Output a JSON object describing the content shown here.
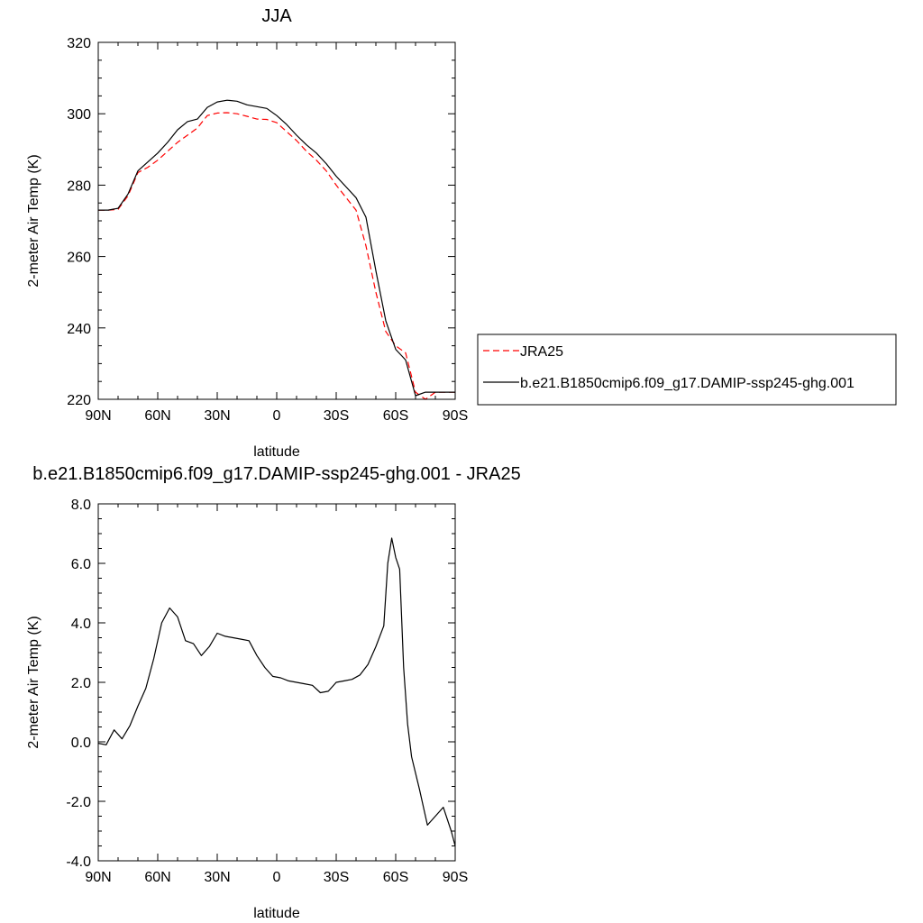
{
  "chart_data": [
    {
      "type": "line",
      "title": "JJA",
      "xlabel": "latitude",
      "ylabel": "2-meter Air Temp (K)",
      "xlim": [
        90,
        -90
      ],
      "ylim": [
        220,
        320
      ],
      "xticks": [
        {
          "value": 90,
          "label": "90N"
        },
        {
          "value": 60,
          "label": "60N"
        },
        {
          "value": 30,
          "label": "30N"
        },
        {
          "value": 0,
          "label": "0"
        },
        {
          "value": -30,
          "label": "30S"
        },
        {
          "value": -60,
          "label": "60S"
        },
        {
          "value": -90,
          "label": "90S"
        }
      ],
      "yticks": [
        {
          "value": 220,
          "label": "220"
        },
        {
          "value": 240,
          "label": "240"
        },
        {
          "value": 260,
          "label": "260"
        },
        {
          "value": 280,
          "label": "280"
        },
        {
          "value": 300,
          "label": "300"
        },
        {
          "value": 320,
          "label": "320"
        }
      ],
      "grid": false,
      "legend_position": "right",
      "series": [
        {
          "name": "JRA25",
          "color": "#ff0000",
          "dash": "dashed",
          "x": [
            90,
            85,
            80,
            75,
            70,
            65,
            60,
            55,
            50,
            45,
            40,
            35,
            30,
            25,
            20,
            15,
            10,
            5,
            0,
            -5,
            -10,
            -15,
            -20,
            -25,
            -30,
            -35,
            -40,
            -45,
            -50,
            -55,
            -60,
            -65,
            -70,
            -75,
            -80,
            -85,
            -90
          ],
          "values": [
            273,
            273,
            273.2,
            277,
            283.5,
            285,
            287,
            289.5,
            292,
            294,
            296,
            299.5,
            300.2,
            300.3,
            300,
            299.3,
            298.5,
            298.4,
            297.5,
            295,
            292.5,
            289.5,
            287,
            284,
            280,
            276.5,
            273,
            263,
            250,
            239,
            235,
            233,
            222,
            218,
            222,
            222,
            222
          ]
        },
        {
          "name": "b.e21.B1850cmip6.f09_g17.DAMIP-ssp245-ghg.001",
          "color": "#000000",
          "dash": "solid",
          "x": [
            90,
            85,
            80,
            75,
            70,
            65,
            60,
            55,
            50,
            45,
            40,
            35,
            30,
            25,
            20,
            15,
            10,
            5,
            0,
            -5,
            -10,
            -15,
            -20,
            -25,
            -30,
            -35,
            -40,
            -45,
            -50,
            -55,
            -60,
            -65,
            -70,
            -75,
            -80,
            -85,
            -90
          ],
          "values": [
            273,
            273,
            273.5,
            277.5,
            284,
            286.5,
            289,
            292,
            295.5,
            297.8,
            298.5,
            301.8,
            303.3,
            303.8,
            303.5,
            302.5,
            302,
            301.5,
            299.5,
            297,
            294,
            291.3,
            289,
            286,
            282.5,
            279.5,
            276.5,
            271,
            256,
            242,
            234,
            231,
            221,
            222,
            222,
            222,
            222
          ]
        }
      ]
    },
    {
      "type": "line",
      "title": "b.e21.B1850cmip6.f09_g17.DAMIP-ssp245-ghg.001 - JRA25",
      "xlabel": "latitude",
      "ylabel": "2-meter Air Temp (K)",
      "xlim": [
        90,
        -90
      ],
      "ylim": [
        -4,
        8
      ],
      "xticks": [
        {
          "value": 90,
          "label": "90N"
        },
        {
          "value": 60,
          "label": "60N"
        },
        {
          "value": 30,
          "label": "30N"
        },
        {
          "value": 0,
          "label": "0"
        },
        {
          "value": -30,
          "label": "30S"
        },
        {
          "value": -60,
          "label": "60S"
        },
        {
          "value": -90,
          "label": "90S"
        }
      ],
      "yticks": [
        {
          "value": -4,
          "label": "-4.0"
        },
        {
          "value": -2,
          "label": "-2.0"
        },
        {
          "value": 0,
          "label": "0.0"
        },
        {
          "value": 2,
          "label": "2.0"
        },
        {
          "value": 4,
          "label": "4.0"
        },
        {
          "value": 6,
          "label": "6.0"
        },
        {
          "value": 8,
          "label": "8.0"
        }
      ],
      "grid": false,
      "series": [
        {
          "color": "#000000",
          "dash": "solid",
          "x": [
            90,
            86,
            82,
            78,
            74,
            70,
            66,
            62,
            58,
            54,
            50,
            46,
            42,
            38,
            34,
            30,
            26,
            22,
            18,
            14,
            10,
            6,
            2,
            -2,
            -6,
            -10,
            -14,
            -18,
            -22,
            -26,
            -30,
            -34,
            -38,
            -42,
            -46,
            -50,
            -54,
            -56,
            -58,
            -60,
            -62,
            -64,
            -66,
            -68,
            -72,
            -76,
            -80,
            -84,
            -88,
            -90
          ],
          "values": [
            -0.05,
            -0.1,
            0.4,
            0.1,
            0.55,
            1.2,
            1.8,
            2.8,
            4.0,
            4.5,
            4.2,
            3.4,
            3.3,
            2.9,
            3.2,
            3.65,
            3.55,
            3.5,
            3.45,
            3.4,
            2.9,
            2.5,
            2.2,
            2.15,
            2.05,
            2.0,
            1.95,
            1.9,
            1.65,
            1.7,
            2.0,
            2.05,
            2.1,
            2.25,
            2.6,
            3.2,
            3.9,
            6.0,
            6.85,
            6.2,
            5.8,
            2.5,
            0.6,
            -0.5,
            -1.6,
            -2.8,
            -2.5,
            -2.2,
            -3.0,
            -3.5
          ]
        }
      ]
    }
  ]
}
